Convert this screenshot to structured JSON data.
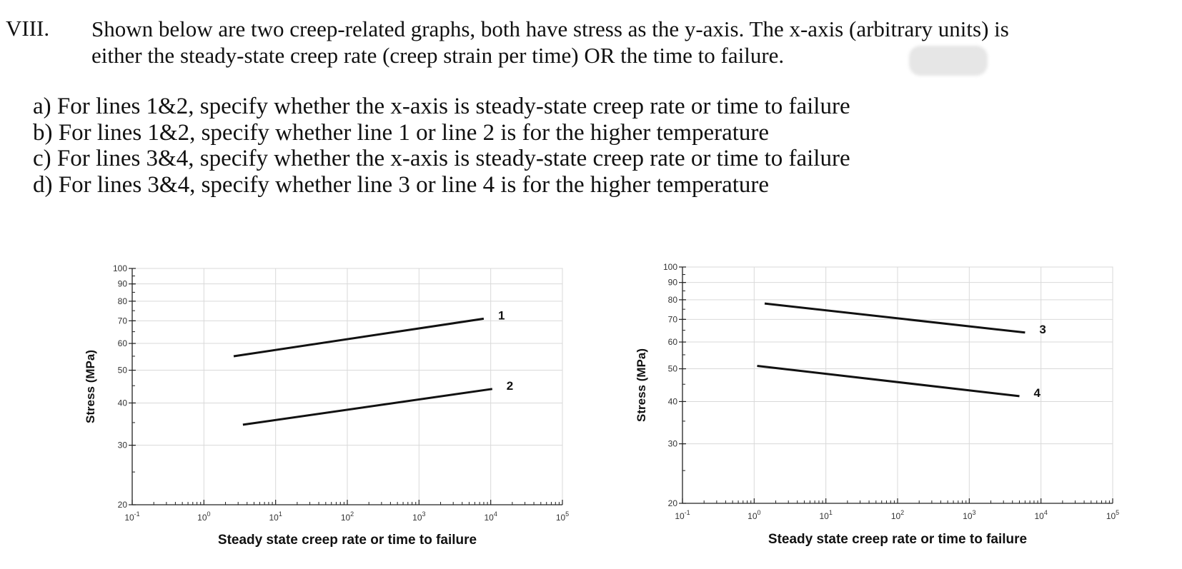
{
  "problem": {
    "number": "VIII.",
    "intro_lines": [
      "Shown below are two creep-related graphs, both have stress as the y-axis. The x-axis (arbitrary units) is",
      "either the steady-state creep rate (creep strain per time) OR the time to failure."
    ],
    "questions": [
      "a) For lines 1&2, specify whether the x-axis is steady-state creep rate or time to failure",
      "b) For lines 1&2, specify whether line 1 or line 2 is for the higher temperature",
      "c) For lines 3&4, specify whether the x-axis is steady-state creep rate or time to failure",
      "d) For lines 3&4, specify whether line 3 or line 4 is for the higher temperature"
    ]
  },
  "chart_data": [
    {
      "type": "line",
      "xlabel": "Steady state creep rate or time to failure",
      "ylabel": "Stress (MPa)",
      "x_scale": "log",
      "y_scale": "log",
      "xlim": [
        0.1,
        100000
      ],
      "ylim": [
        20,
        100
      ],
      "x_ticks": [
        {
          "value": 0.1,
          "base": "10",
          "exp": "-1"
        },
        {
          "value": 1,
          "base": "10",
          "exp": "0"
        },
        {
          "value": 10,
          "base": "10",
          "exp": "1"
        },
        {
          "value": 100,
          "base": "10",
          "exp": "2"
        },
        {
          "value": 1000,
          "base": "10",
          "exp": "3"
        },
        {
          "value": 10000,
          "base": "10",
          "exp": "4"
        },
        {
          "value": 100000,
          "base": "10",
          "exp": "5"
        }
      ],
      "y_ticks": [
        20,
        30,
        40,
        50,
        60,
        70,
        80,
        90,
        100
      ],
      "grid": true,
      "series": [
        {
          "name": "1",
          "color": "#111111",
          "x": [
            2.6,
            8000
          ],
          "y": [
            55,
            71
          ]
        },
        {
          "name": "2",
          "color": "#111111",
          "x": [
            3.5,
            10500
          ],
          "y": [
            34.5,
            44
          ]
        }
      ]
    },
    {
      "type": "line",
      "xlabel": "Steady state creep rate or time to failure",
      "ylabel": "Stress (MPa)",
      "x_scale": "log",
      "y_scale": "log",
      "xlim": [
        0.1,
        100000
      ],
      "ylim": [
        20,
        100
      ],
      "x_ticks": [
        {
          "value": 0.1,
          "base": "10",
          "exp": "-1"
        },
        {
          "value": 1,
          "base": "10",
          "exp": "0"
        },
        {
          "value": 10,
          "base": "10",
          "exp": "1"
        },
        {
          "value": 100,
          "base": "10",
          "exp": "2"
        },
        {
          "value": 1000,
          "base": "10",
          "exp": "3"
        },
        {
          "value": 10000,
          "base": "10",
          "exp": "4"
        },
        {
          "value": 100000,
          "base": "10",
          "exp": "5"
        }
      ],
      "y_ticks": [
        20,
        30,
        40,
        50,
        60,
        70,
        80,
        90,
        100
      ],
      "grid": true,
      "series": [
        {
          "name": "3",
          "color": "#111111",
          "x": [
            1.4,
            6000
          ],
          "y": [
            78,
            64
          ]
        },
        {
          "name": "4",
          "color": "#111111",
          "x": [
            1.1,
            5000
          ],
          "y": [
            51,
            41.5
          ]
        }
      ]
    }
  ]
}
